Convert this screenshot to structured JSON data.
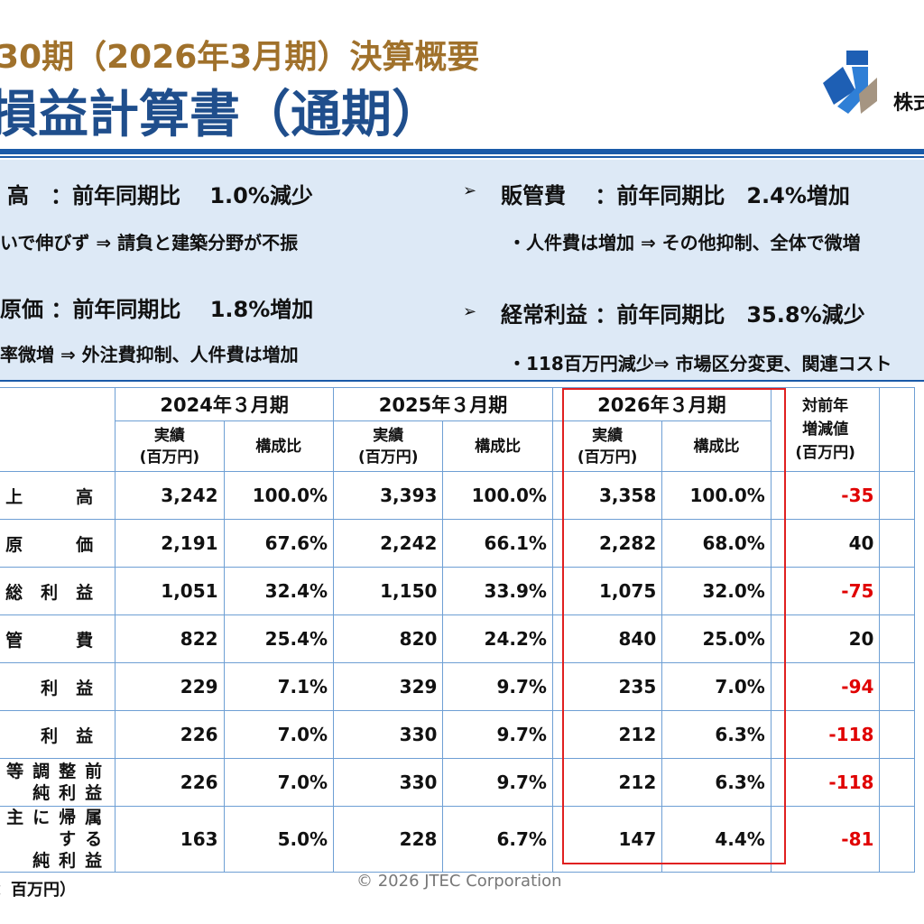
{
  "header": {
    "subtitle": "30期（2026年3月期）決算概要",
    "title": "損益計算書（通期）",
    "company": "株式"
  },
  "summary": {
    "left": [
      {
        "head": "高　：前年同期比　 1.0%減少",
        "note": "いで伸びず ⇒ 請負と建築分野が不振"
      },
      {
        "head": "原価 ：前年同期比　 1.8%増加",
        "note": "率微増 ⇒ 外注費抑制、人件費は増加"
      }
    ],
    "right": [
      {
        "bullet": "➢",
        "head": "販管費　 ：前年同期比　2.4%増加",
        "note": "・人件費は増加 ⇒ その他抑制、全体で微増"
      },
      {
        "bullet": "➢",
        "head": "経常利益 ：前年同期比　35.8%減少",
        "note": "・118百万円減少⇒ 市場区分変更、関連コスト"
      }
    ]
  },
  "table": {
    "periods": [
      "2024年３月期",
      "2025年３月期",
      "2026年３月期"
    ],
    "diff_header": "対前年\n増減値\n(百万円)",
    "sub_actual": "実績\n(百万円)",
    "sub_ratio": "構成比",
    "rows": [
      {
        "label": "上　高",
        "v": [
          "3,242",
          "100.0%",
          "3,393",
          "100.0%",
          "3,358",
          "100.0%"
        ],
        "diff": "-35",
        "neg": true
      },
      {
        "label": "原　価",
        "v": [
          "2,191",
          "67.6%",
          "2,242",
          "66.1%",
          "2,282",
          "68.0%"
        ],
        "diff": "40",
        "neg": false
      },
      {
        "label": "総利益",
        "v": [
          "1,051",
          "32.4%",
          "1,150",
          "33.9%",
          "1,075",
          "32.0%"
        ],
        "diff": "-75",
        "neg": true
      },
      {
        "label": "管　費",
        "v": [
          "822",
          "25.4%",
          "820",
          "24.2%",
          "840",
          "25.0%"
        ],
        "diff": "20",
        "neg": false
      },
      {
        "label": "利益",
        "v": [
          "229",
          "7.1%",
          "329",
          "9.7%",
          "235",
          "7.0%"
        ],
        "diff": "-94",
        "neg": true
      },
      {
        "label": "利益",
        "v": [
          "226",
          "7.0%",
          "330",
          "9.7%",
          "212",
          "6.3%"
        ],
        "diff": "-118",
        "neg": true
      },
      {
        "label": "等調整前\n純利益",
        "v": [
          "226",
          "7.0%",
          "330",
          "9.7%",
          "212",
          "6.3%"
        ],
        "diff": "-118",
        "neg": true
      },
      {
        "label": "主に帰属する\n純利益",
        "v": [
          "163",
          "5.0%",
          "228",
          "6.7%",
          "147",
          "4.4%"
        ],
        "diff": "-81",
        "neg": true
      }
    ],
    "unit": "：百万円）"
  },
  "footer": {
    "copyright": "© 2026 JTEC Corporation"
  },
  "colors": {
    "title": "#1f4e8c",
    "subtitle": "#a0712b",
    "rule": "#1a5aa8",
    "band": "#dde9f6",
    "negative": "#e00000",
    "highlight": "#e02020"
  }
}
